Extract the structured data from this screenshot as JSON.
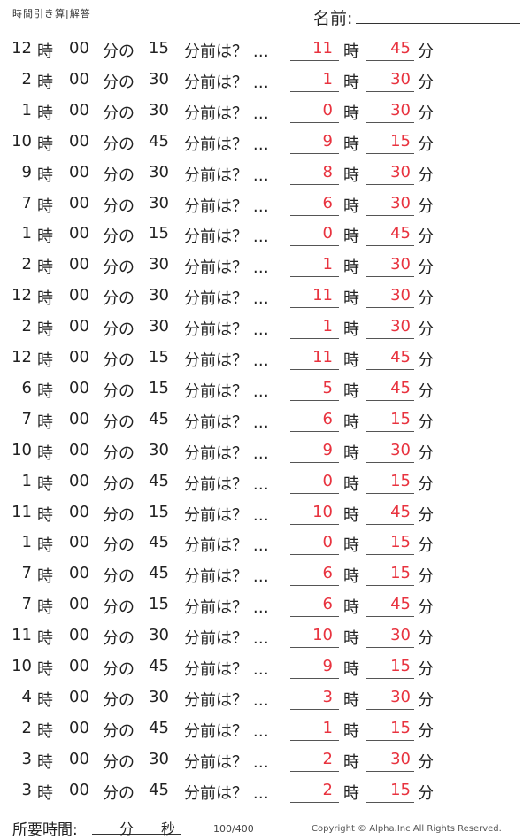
{
  "header": {
    "title": "時間引き算|解答",
    "name_label": "名前:"
  },
  "labels": {
    "hour": "時",
    "minute": "分",
    "of": "分の",
    "before": "分前は？ …"
  },
  "colors": {
    "answer": "#e8333f"
  },
  "problems": [
    {
      "h": "12",
      "m": "00",
      "d": "15",
      "ah": "11",
      "am": "45"
    },
    {
      "h": "2",
      "m": "00",
      "d": "30",
      "ah": "1",
      "am": "30"
    },
    {
      "h": "1",
      "m": "00",
      "d": "30",
      "ah": "0",
      "am": "30"
    },
    {
      "h": "10",
      "m": "00",
      "d": "45",
      "ah": "9",
      "am": "15"
    },
    {
      "h": "9",
      "m": "00",
      "d": "30",
      "ah": "8",
      "am": "30"
    },
    {
      "h": "7",
      "m": "00",
      "d": "30",
      "ah": "6",
      "am": "30"
    },
    {
      "h": "1",
      "m": "00",
      "d": "15",
      "ah": "0",
      "am": "45"
    },
    {
      "h": "2",
      "m": "00",
      "d": "30",
      "ah": "1",
      "am": "30"
    },
    {
      "h": "12",
      "m": "00",
      "d": "30",
      "ah": "11",
      "am": "30"
    },
    {
      "h": "2",
      "m": "00",
      "d": "30",
      "ah": "1",
      "am": "30"
    },
    {
      "h": "12",
      "m": "00",
      "d": "15",
      "ah": "11",
      "am": "45"
    },
    {
      "h": "6",
      "m": "00",
      "d": "15",
      "ah": "5",
      "am": "45"
    },
    {
      "h": "7",
      "m": "00",
      "d": "45",
      "ah": "6",
      "am": "15"
    },
    {
      "h": "10",
      "m": "00",
      "d": "30",
      "ah": "9",
      "am": "30"
    },
    {
      "h": "1",
      "m": "00",
      "d": "45",
      "ah": "0",
      "am": "15"
    },
    {
      "h": "11",
      "m": "00",
      "d": "15",
      "ah": "10",
      "am": "45"
    },
    {
      "h": "1",
      "m": "00",
      "d": "45",
      "ah": "0",
      "am": "15"
    },
    {
      "h": "7",
      "m": "00",
      "d": "45",
      "ah": "6",
      "am": "15"
    },
    {
      "h": "7",
      "m": "00",
      "d": "15",
      "ah": "6",
      "am": "45"
    },
    {
      "h": "11",
      "m": "00",
      "d": "30",
      "ah": "10",
      "am": "30"
    },
    {
      "h": "10",
      "m": "00",
      "d": "45",
      "ah": "9",
      "am": "15"
    },
    {
      "h": "4",
      "m": "00",
      "d": "30",
      "ah": "3",
      "am": "30"
    },
    {
      "h": "2",
      "m": "00",
      "d": "45",
      "ah": "1",
      "am": "15"
    },
    {
      "h": "3",
      "m": "00",
      "d": "30",
      "ah": "2",
      "am": "30"
    },
    {
      "h": "3",
      "m": "00",
      "d": "45",
      "ah": "2",
      "am": "15"
    }
  ],
  "footer": {
    "time_label": "所要時間:",
    "minute": "分",
    "second": "秒",
    "score": "100/400",
    "copyright": "Copyright ©  Alpha.Inc All Rights Reserved."
  }
}
